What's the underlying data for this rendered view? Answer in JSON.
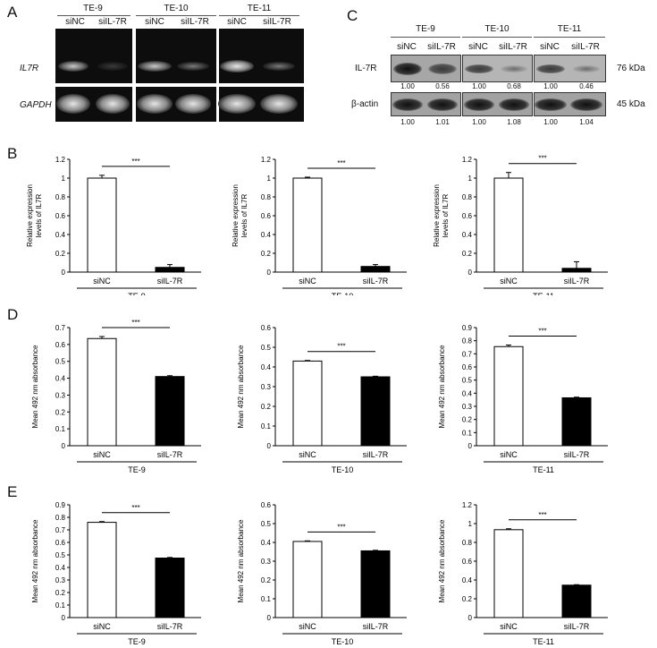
{
  "panel_a": {
    "letter": "A",
    "cell_lines": [
      "TE-9",
      "TE-10",
      "TE-11"
    ],
    "lanes": [
      "siNC",
      "siIL-7R"
    ],
    "rows": [
      "IL7R",
      "GAPDH"
    ]
  },
  "panel_c": {
    "letter": "C",
    "cell_lines": [
      "TE-9",
      "TE-10",
      "TE-11"
    ],
    "lanes": [
      "siNC",
      "siIL-7R"
    ],
    "rows": [
      {
        "label": "IL-7R",
        "kda": "76 kDa",
        "quant": [
          [
            "1.00",
            "0.56"
          ],
          [
            "1.00",
            "0.68"
          ],
          [
            "1.00",
            "0.46"
          ]
        ]
      },
      {
        "label": "β-actin",
        "kda": "45 kDa",
        "quant": [
          [
            "1.00",
            "1.01"
          ],
          [
            "1.00",
            "1.08"
          ],
          [
            "1.00",
            "1.04"
          ]
        ]
      }
    ]
  },
  "row_letters": {
    "B": "B",
    "D": "D",
    "E": "E"
  },
  "chart_data": [
    {
      "panel": "B",
      "type": "bar",
      "cell_line": "TE-9",
      "categories": [
        "siNC",
        "siIL-7R"
      ],
      "values": [
        1.0,
        0.05
      ],
      "errors": [
        0.03,
        0.03
      ],
      "ylabel_line1": "Relative expression",
      "ylabel_line2": "levels of IL7R",
      "ylim": [
        0,
        1.2
      ],
      "yticks": [
        "0",
        "0.2",
        "0.4",
        "0.6",
        "0.8",
        "1",
        "1.2"
      ],
      "significance": "***"
    },
    {
      "panel": "B",
      "type": "bar",
      "cell_line": "TE-10",
      "categories": [
        "siNC",
        "siIL-7R"
      ],
      "values": [
        1.0,
        0.06
      ],
      "errors": [
        0.01,
        0.02
      ],
      "ylabel_line1": "Relative expression",
      "ylabel_line2": "levels of IL7R",
      "ylim": [
        0,
        1.2
      ],
      "yticks": [
        "0",
        "0.2",
        "0.4",
        "0.6",
        "0.8",
        "1",
        "1.2"
      ],
      "significance": "***"
    },
    {
      "panel": "B",
      "type": "bar",
      "cell_line": "TE-11",
      "categories": [
        "siNC",
        "siIL-7R"
      ],
      "values": [
        1.0,
        0.04
      ],
      "errors": [
        0.06,
        0.07
      ],
      "ylabel_line1": "Relative expression",
      "ylabel_line2": "levels of IL7R",
      "ylim": [
        0,
        1.2
      ],
      "yticks": [
        "0",
        "0.2",
        "0.4",
        "0.6",
        "0.8",
        "1",
        "1.2"
      ],
      "significance": "***"
    },
    {
      "panel": "D",
      "type": "bar",
      "cell_line": "TE-9",
      "categories": [
        "siNC",
        "siIL-7R"
      ],
      "values": [
        0.635,
        0.41
      ],
      "errors": [
        0.012,
        0.005
      ],
      "ylabel_line1": "Mean 492 nm absorbance",
      "ylabel_line2": "",
      "ylim": [
        0,
        0.7
      ],
      "yticks": [
        "0",
        "0.1",
        "0.2",
        "0.3",
        "0.4",
        "0.5",
        "0.6",
        "0.7"
      ],
      "significance": "***"
    },
    {
      "panel": "D",
      "type": "bar",
      "cell_line": "TE-10",
      "categories": [
        "siNC",
        "siIL-7R"
      ],
      "values": [
        0.43,
        0.35
      ],
      "errors": [
        0.003,
        0.003
      ],
      "ylabel_line1": "Mean 492 nm absorbance",
      "ylabel_line2": "",
      "ylim": [
        0,
        0.6
      ],
      "yticks": [
        "0",
        "0.1",
        "0.2",
        "0.3",
        "0.4",
        "0.5",
        "0.6"
      ],
      "significance": "***"
    },
    {
      "panel": "D",
      "type": "bar",
      "cell_line": "TE-11",
      "categories": [
        "siNC",
        "siIL-7R"
      ],
      "values": [
        0.755,
        0.365
      ],
      "errors": [
        0.012,
        0.005
      ],
      "ylabel_line1": "Mean 492 nm absorbance",
      "ylabel_line2": "",
      "ylim": [
        0,
        0.9
      ],
      "yticks": [
        "0",
        "0.1",
        "0.2",
        "0.3",
        "0.4",
        "0.5",
        "0.6",
        "0.7",
        "0.8",
        "0.9"
      ],
      "significance": "***"
    },
    {
      "panel": "E",
      "type": "bar",
      "cell_line": "TE-9",
      "categories": [
        "siNC",
        "siIL-7R"
      ],
      "values": [
        0.76,
        0.475
      ],
      "errors": [
        0.006,
        0.005
      ],
      "ylabel_line1": "Mean 492 nm absorbance",
      "ylabel_line2": "",
      "ylim": [
        0,
        0.9
      ],
      "yticks": [
        "0",
        "0.1",
        "0.2",
        "0.3",
        "0.4",
        "0.5",
        "0.6",
        "0.7",
        "0.8",
        "0.9"
      ],
      "significance": "***"
    },
    {
      "panel": "E",
      "type": "bar",
      "cell_line": "TE-10",
      "categories": [
        "siNC",
        "siIL-7R"
      ],
      "values": [
        0.405,
        0.355
      ],
      "errors": [
        0.003,
        0.003
      ],
      "ylabel_line1": "Mean 492 nm absorbance",
      "ylabel_line2": "",
      "ylim": [
        0,
        0.6
      ],
      "yticks": [
        "0",
        "0.1",
        "0.2",
        "0.3",
        "0.4",
        "0.5",
        "0.6"
      ],
      "significance": "***"
    },
    {
      "panel": "E",
      "type": "bar",
      "cell_line": "TE-11",
      "categories": [
        "siNC",
        "siIL-7R"
      ],
      "values": [
        0.935,
        0.345
      ],
      "errors": [
        0.01,
        0.005
      ],
      "ylabel_line1": "Mean 492 nm absorbance",
      "ylabel_line2": "",
      "ylim": [
        0,
        1.2
      ],
      "yticks": [
        "0",
        "0.2",
        "0.4",
        "0.6",
        "0.8",
        "1",
        "1.2"
      ],
      "significance": "***"
    }
  ]
}
